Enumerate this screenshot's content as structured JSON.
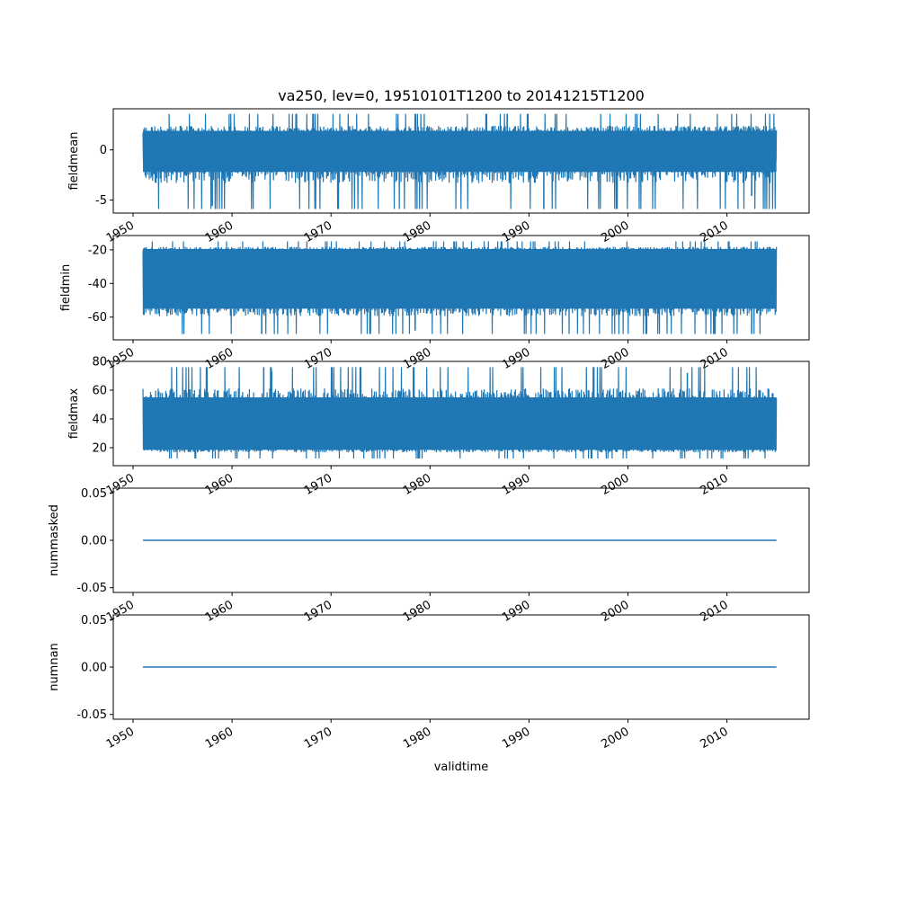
{
  "chart_data": {
    "type": "line",
    "title": "va250, lev=0, 19510101T1200 to 20141215T1200",
    "xlabel": "validtime",
    "x_ticks": [
      "1950",
      "1960",
      "1970",
      "1980",
      "1990",
      "2000",
      "2010"
    ],
    "x_range": [
      1948.0,
      2018.3
    ],
    "data_span": [
      1951.0,
      2015.0
    ],
    "series_color": "#1f77b4",
    "grid": false,
    "panels": [
      {
        "ylabel": "fieldmean",
        "ylim": [
          -6.3,
          4.1
        ],
        "yticks": [
          "-5",
          "0"
        ],
        "ytick_values": [
          -5,
          0
        ],
        "envelope": {
          "center": 0.0,
          "upper_base": 1.9,
          "lower_base": -2.2,
          "upper_peak": 3.6,
          "lower_peak": -5.9
        },
        "notable_spikes": [
          [
            1958.0,
            -5.6
          ],
          [
            1991.5,
            -5.9
          ],
          [
            1987.8,
            3.6
          ],
          [
            2012.5,
            -4.6
          ]
        ],
        "style": "noisy"
      },
      {
        "ylabel": "fieldmin",
        "ylim": [
          -73.5,
          -11.5
        ],
        "yticks": [
          "-20",
          "-40",
          "-60"
        ],
        "ytick_values": [
          -20,
          -40,
          -60
        ],
        "envelope": {
          "center": -35.0,
          "upper_base": -19.5,
          "lower_base": -55.0,
          "upper_peak": -15.0,
          "lower_peak": -70.0
        },
        "notable_spikes": [
          [
            1963.0,
            -70.0
          ],
          [
            1978.5,
            -68.0
          ],
          [
            2012.5,
            -70.0
          ]
        ],
        "style": "noisy"
      },
      {
        "ylabel": "fieldmax",
        "ylim": [
          7.5,
          80.0
        ],
        "yticks": [
          "20",
          "40",
          "60",
          "80"
        ],
        "ytick_values": [
          20,
          40,
          60,
          80
        ],
        "envelope": {
          "center": 33.0,
          "upper_base": 55.0,
          "lower_base": 18.5,
          "upper_peak": 76.0,
          "lower_peak": 12.5
        },
        "notable_spikes": [
          [
            1963.2,
            76.0
          ],
          [
            1964.0,
            73.0
          ],
          [
            2006.0,
            72.0
          ]
        ],
        "style": "noisy"
      },
      {
        "ylabel": "nummasked",
        "ylim": [
          -0.055,
          0.055
        ],
        "yticks": [
          "0.05",
          "0.00",
          "-0.05"
        ],
        "ytick_values": [
          0.05,
          0.0,
          -0.05
        ],
        "constant_value": 0.0,
        "style": "flat"
      },
      {
        "ylabel": "numnan",
        "ylim": [
          -0.055,
          0.055
        ],
        "yticks": [
          "0.05",
          "0.00",
          "-0.05"
        ],
        "ytick_values": [
          0.05,
          0.0,
          -0.05
        ],
        "constant_value": 0.0,
        "style": "flat"
      }
    ]
  }
}
